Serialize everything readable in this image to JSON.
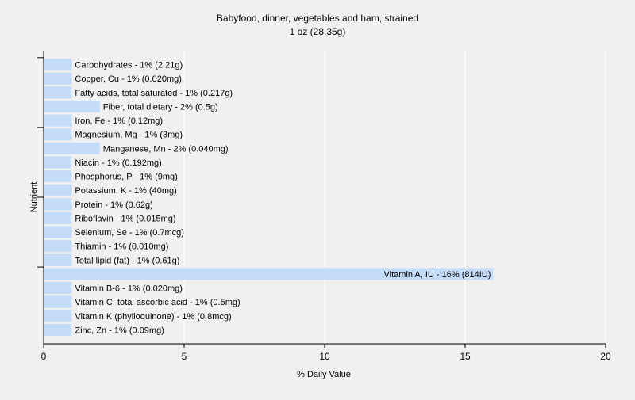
{
  "chart_data": {
    "type": "bar",
    "orientation": "horizontal",
    "title": "Babyfood, dinner, vegetables and ham, strained",
    "subtitle": "1 oz (28.35g)",
    "xlabel": "% Daily Value",
    "ylabel": "Nutrient",
    "xlim": [
      0,
      20
    ],
    "xticks": [
      0,
      5,
      10,
      15,
      20
    ],
    "grid": true,
    "bar_color": "#c5dcf9",
    "grid_color": "#ffffff",
    "background_color": "#f0f0f0",
    "categories": [
      "Carbohydrates",
      "Copper, Cu",
      "Fatty acids, total saturated",
      "Fiber, total dietary",
      "Iron, Fe",
      "Magnesium, Mg",
      "Manganese, Mn",
      "Niacin",
      "Phosphorus, P",
      "Potassium, K",
      "Protein",
      "Riboflavin",
      "Selenium, Se",
      "Thiamin",
      "Total lipid (fat)",
      "Vitamin A, IU",
      "Vitamin B-6",
      "Vitamin C, total ascorbic acid",
      "Vitamin K (phylloquinone)",
      "Zinc, Zn"
    ],
    "values": [
      1,
      1,
      1,
      2,
      1,
      1,
      2,
      1,
      1,
      1,
      1,
      1,
      1,
      1,
      1,
      16,
      1,
      1,
      1,
      1
    ],
    "labels": [
      "Carbohydrates - 1% (2.21g)",
      "Copper, Cu - 1% (0.020mg)",
      "Fatty acids, total saturated - 1% (0.217g)",
      "Fiber, total dietary - 2% (0.5g)",
      "Iron, Fe - 1% (0.12mg)",
      "Magnesium, Mg - 1% (3mg)",
      "Manganese, Mn - 2% (0.040mg)",
      "Niacin - 1% (0.192mg)",
      "Phosphorus, P - 1% (9mg)",
      "Potassium, K - 1% (40mg)",
      "Protein - 1% (0.62g)",
      "Riboflavin - 1% (0.015mg)",
      "Selenium, Se - 1% (0.7mcg)",
      "Thiamin - 1% (0.010mg)",
      "Total lipid (fat) - 1% (0.61g)",
      "Vitamin A, IU - 16% (814IU)",
      "Vitamin B-6 - 1% (0.020mg)",
      "Vitamin C, total ascorbic acid - 1% (0.5mg)",
      "Vitamin K (phylloquinone) - 1% (0.8mcg)",
      "Zinc, Zn - 1% (0.09mg)"
    ]
  }
}
